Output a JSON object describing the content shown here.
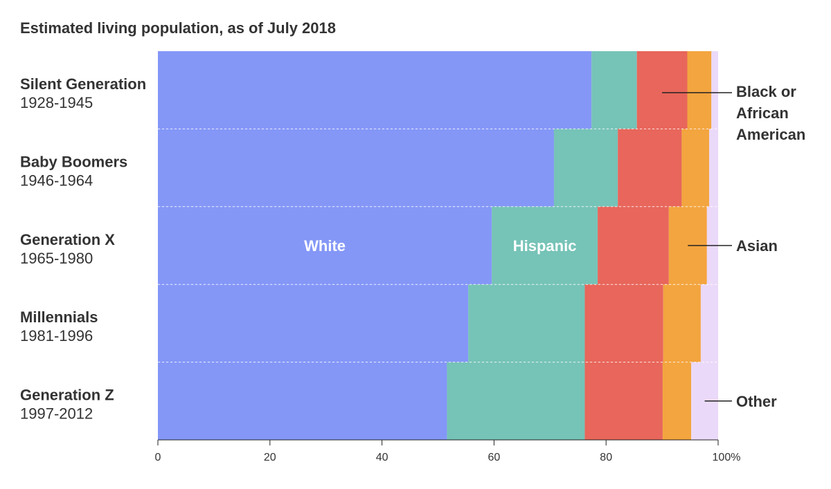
{
  "chart_data": {
    "type": "bar",
    "orientation": "horizontal",
    "stacked": true,
    "title": "Estimated living population, as of July 2018",
    "categories": [
      {
        "name": "Silent Generation",
        "years": "1928-1945"
      },
      {
        "name": "Baby Boomers",
        "years": "1946-1964"
      },
      {
        "name": "Generation X",
        "years": "1965-1980"
      },
      {
        "name": "Millennials",
        "years": "1981-1996"
      },
      {
        "name": "Generation Z",
        "years": "1997-2012"
      }
    ],
    "series": [
      {
        "name": "White",
        "color": "#8497f7",
        "values": [
          77.4,
          70.7,
          59.6,
          55.4,
          51.6
        ]
      },
      {
        "name": "Hispanic",
        "color": "#76c3b7",
        "values": [
          8.1,
          11.4,
          18.9,
          20.8,
          24.6
        ]
      },
      {
        "name": "Black or African American",
        "color": "#e8665b",
        "values": [
          9.0,
          11.4,
          12.7,
          14.0,
          13.9
        ]
      },
      {
        "name": "Asian",
        "color": "#f3a53f",
        "values": [
          4.3,
          4.9,
          6.8,
          6.7,
          5.1
        ]
      },
      {
        "name": "Other",
        "color": "#ebd9f9",
        "values": [
          1.2,
          1.6,
          2.0,
          3.1,
          4.8
        ]
      }
    ],
    "in_bar_labels": [
      {
        "text": "White",
        "series": 0,
        "category": 2
      },
      {
        "text": "Hispanic",
        "series": 1,
        "category": 2
      }
    ],
    "callouts": [
      {
        "lines": [
          "Black or",
          "African",
          "American"
        ],
        "series": 2,
        "category": 0
      },
      {
        "lines": [
          "Asian"
        ],
        "series": 3,
        "category": 2
      },
      {
        "lines": [
          "Other"
        ],
        "series": 4,
        "category": 4
      }
    ],
    "xlim": [
      0,
      100
    ],
    "xticks": [
      0,
      20,
      40,
      60,
      80,
      100
    ],
    "xtick_labels": [
      "0",
      "20",
      "40",
      "60",
      "80",
      "100%"
    ],
    "grid": false
  }
}
